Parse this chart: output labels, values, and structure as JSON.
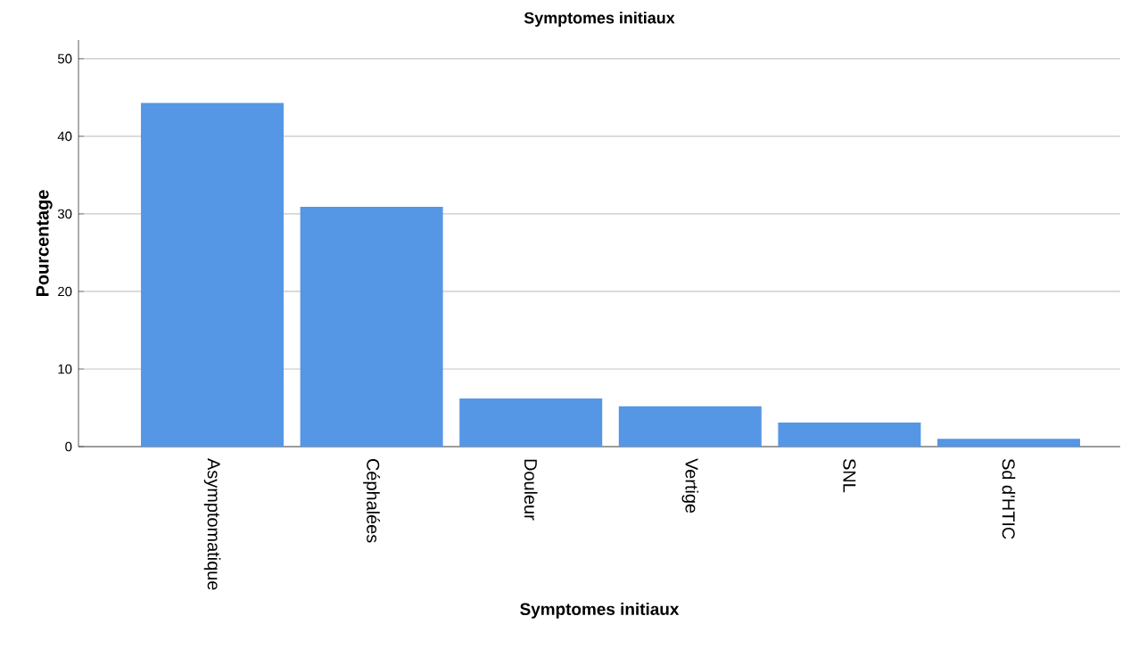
{
  "chart_data": {
    "type": "bar",
    "title": "Symptomes initiaux",
    "xlabel": "Symptomes initiaux",
    "ylabel": "Pourcentage",
    "categories": [
      "Asymptomatique",
      "Céphalées",
      "Douleur",
      "Vertige",
      "SNL",
      "Sd d'HTIC"
    ],
    "values": [
      44.3,
      30.9,
      6.2,
      5.2,
      3.1,
      1.0
    ],
    "color": "#5596e5",
    "ylim": [
      0,
      52.4
    ],
    "yticks": [
      0,
      10,
      20,
      30,
      40,
      50
    ],
    "grid": "y"
  }
}
